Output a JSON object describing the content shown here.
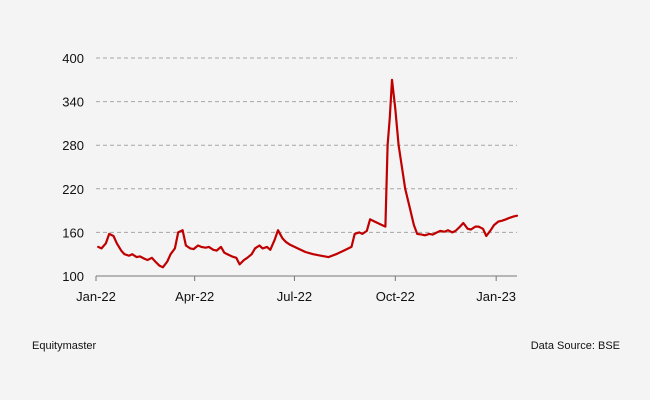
{
  "footer": {
    "left": "Equitymaster",
    "right": "Data Source: BSE"
  },
  "colors": {
    "line": "#c00000",
    "grid": "#a6a6a6",
    "background": "#f4f4f4"
  },
  "chart_data": {
    "type": "line",
    "title": "",
    "xlabel": "",
    "ylabel": "",
    "ylim": [
      100,
      400
    ],
    "yticks": [
      100,
      160,
      220,
      280,
      340,
      400
    ],
    "ytick_labels": [
      "100",
      "160",
      "220",
      "280",
      "340",
      "400"
    ],
    "xlim": [
      "2022-01-01",
      "2023-01-20"
    ],
    "xticks": [
      "2022-01-01",
      "2022-04-01",
      "2022-07-01",
      "2022-10-01",
      "2023-01-01"
    ],
    "xtick_labels": [
      "Jan-22",
      "Apr-22",
      "Jul-22",
      "Oct-22",
      "Jan-23"
    ],
    "grid": "horizontal dashed",
    "series": [
      {
        "x": [
          "2022-01-03",
          "2022-01-06",
          "2022-01-10",
          "2022-01-13",
          "2022-01-17",
          "2022-01-20",
          "2022-01-24",
          "2022-01-27",
          "2022-01-31",
          "2022-02-03",
          "2022-02-07",
          "2022-02-10",
          "2022-02-14",
          "2022-02-17",
          "2022-02-21",
          "2022-02-24",
          "2022-02-28",
          "2022-03-03",
          "2022-03-07",
          "2022-03-10",
          "2022-03-14",
          "2022-03-17",
          "2022-03-21",
          "2022-03-24",
          "2022-03-28",
          "2022-03-31",
          "2022-04-04",
          "2022-04-07",
          "2022-04-11",
          "2022-04-14",
          "2022-04-18",
          "2022-04-21",
          "2022-04-25",
          "2022-04-28",
          "2022-05-02",
          "2022-05-05",
          "2022-05-09",
          "2022-05-12",
          "2022-05-16",
          "2022-05-19",
          "2022-05-23",
          "2022-05-26",
          "2022-05-30",
          "2022-06-02",
          "2022-06-06",
          "2022-06-09",
          "2022-06-13",
          "2022-06-16",
          "2022-06-20",
          "2022-06-23",
          "2022-06-27",
          "2022-07-04",
          "2022-07-11",
          "2022-07-18",
          "2022-07-25",
          "2022-08-01",
          "2022-08-08",
          "2022-08-15",
          "2022-08-22",
          "2022-08-25",
          "2022-08-29",
          "2022-09-01",
          "2022-09-05",
          "2022-09-08",
          "2022-09-12",
          "2022-09-19",
          "2022-09-22",
          "2022-09-24",
          "2022-09-26",
          "2022-09-28",
          "2022-10-01",
          "2022-10-04",
          "2022-10-07",
          "2022-10-10",
          "2022-10-14",
          "2022-10-18",
          "2022-10-21",
          "2022-10-25",
          "2022-10-28",
          "2022-11-01",
          "2022-11-04",
          "2022-11-08",
          "2022-11-11",
          "2022-11-15",
          "2022-11-18",
          "2022-11-22",
          "2022-11-25",
          "2022-11-29",
          "2022-12-02",
          "2022-12-06",
          "2022-12-09",
          "2022-12-13",
          "2022-12-16",
          "2022-12-20",
          "2022-12-23",
          "2022-12-27",
          "2022-12-30",
          "2023-01-03",
          "2023-01-06",
          "2023-01-10",
          "2023-01-13",
          "2023-01-17",
          "2023-01-20"
        ],
        "y": [
          140,
          138,
          145,
          158,
          155,
          145,
          135,
          130,
          128,
          130,
          126,
          127,
          124,
          122,
          125,
          120,
          114,
          112,
          120,
          130,
          138,
          160,
          163,
          142,
          138,
          137,
          142,
          140,
          139,
          140,
          136,
          135,
          140,
          132,
          129,
          127,
          125,
          116,
          122,
          125,
          130,
          138,
          142,
          138,
          140,
          136,
          150,
          163,
          152,
          147,
          143,
          138,
          133,
          130,
          128,
          126,
          130,
          135,
          140,
          158,
          160,
          158,
          162,
          178,
          175,
          170,
          168,
          280,
          318,
          370,
          330,
          280,
          250,
          220,
          195,
          170,
          158,
          157,
          156,
          158,
          157,
          160,
          162,
          161,
          163,
          160,
          162,
          168,
          173,
          165,
          164,
          168,
          168,
          165,
          155,
          163,
          170,
          175,
          176,
          178,
          180,
          182,
          183
        ]
      }
    ],
    "annotations": []
  }
}
